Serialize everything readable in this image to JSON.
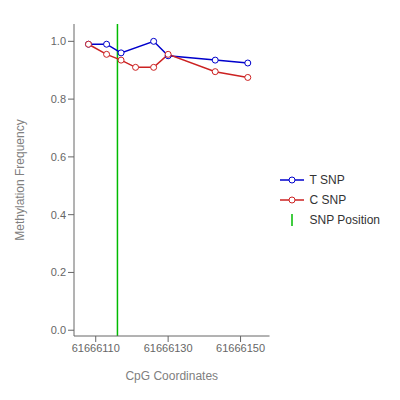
{
  "chart_data": {
    "type": "line",
    "title": "",
    "xlabel": "CpG Coordinates",
    "ylabel": "Methylation Frequency",
    "series": [
      {
        "name": "T SNP",
        "type": "line",
        "color": "#0000CC",
        "marker": "circle",
        "x": [
          61666108,
          61666113,
          61666117,
          61666126,
          61666130,
          61666143,
          61666152
        ],
        "values": [
          0.99,
          0.99,
          0.96,
          1.0,
          0.95,
          0.935,
          0.925
        ]
      },
      {
        "name": "C SNP",
        "type": "line",
        "color": "#CC2222",
        "marker": "circle",
        "x": [
          61666108,
          61666113,
          61666117,
          61666121,
          61666126,
          61666130,
          61666143,
          61666152
        ],
        "values": [
          0.99,
          0.955,
          0.935,
          0.91,
          0.91,
          0.955,
          0.895,
          0.875
        ]
      },
      {
        "name": "SNP Position",
        "type": "vline",
        "color": "#00BB00",
        "x": 61666116
      }
    ],
    "xlim": [
      61666104,
      61666158
    ],
    "ylim": [
      -0.02,
      1.06
    ],
    "xticks": [
      61666110,
      61666130,
      61666150
    ],
    "yticks": [
      {
        "value": 0.0,
        "label": "0.0"
      },
      0.2,
      0.4,
      0.6,
      0.8,
      {
        "value": 1.0,
        "label": "1.0"
      }
    ],
    "legend": "right",
    "grid": false
  }
}
